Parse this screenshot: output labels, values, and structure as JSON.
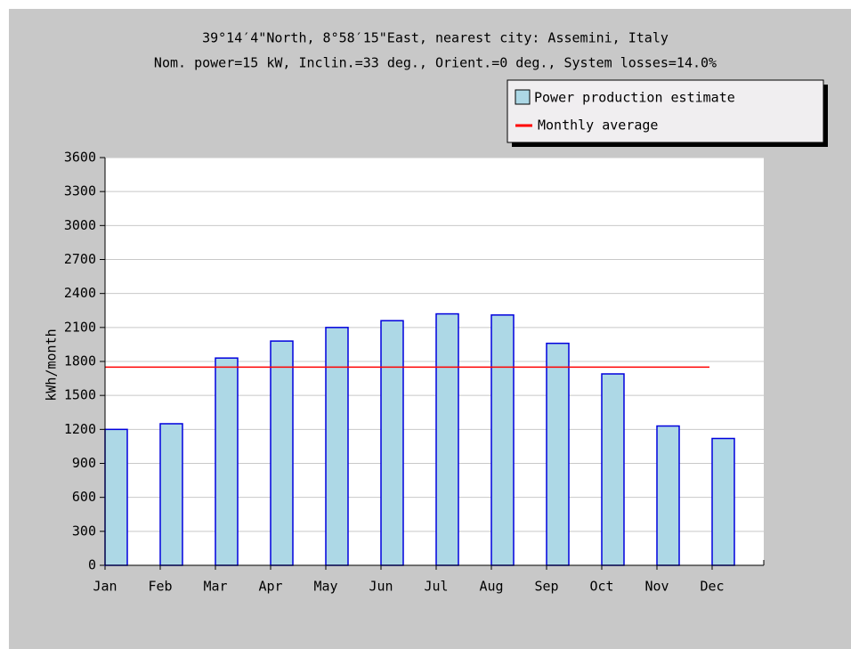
{
  "chart_data": {
    "type": "bar",
    "title": "39°14′4\"North, 8°58′15\"East, nearest city: Assemini, Italy",
    "subtitle": "Nom. power=15 kW, Inclin.=33 deg., Orient.=0 deg., System losses=14.0%",
    "y_label": "kWh/month",
    "categories": [
      "Jan",
      "Feb",
      "Mar",
      "Apr",
      "May",
      "Jun",
      "Jul",
      "Aug",
      "Sep",
      "Oct",
      "Nov",
      "Dec"
    ],
    "series": [
      {
        "name": "Power production estimate",
        "color": "#add8e6",
        "values": [
          1200,
          1250,
          1830,
          1980,
          2100,
          2160,
          2220,
          2210,
          1960,
          1690,
          1230,
          1120
        ]
      },
      {
        "name": "Monthly average",
        "color": "#ff0000",
        "value": 1750
      }
    ],
    "ylim": [
      0,
      3600
    ],
    "yticks": [
      0,
      300,
      600,
      900,
      1200,
      1500,
      1800,
      2100,
      2400,
      2700,
      3000,
      3300,
      3600
    ],
    "grid": true
  }
}
